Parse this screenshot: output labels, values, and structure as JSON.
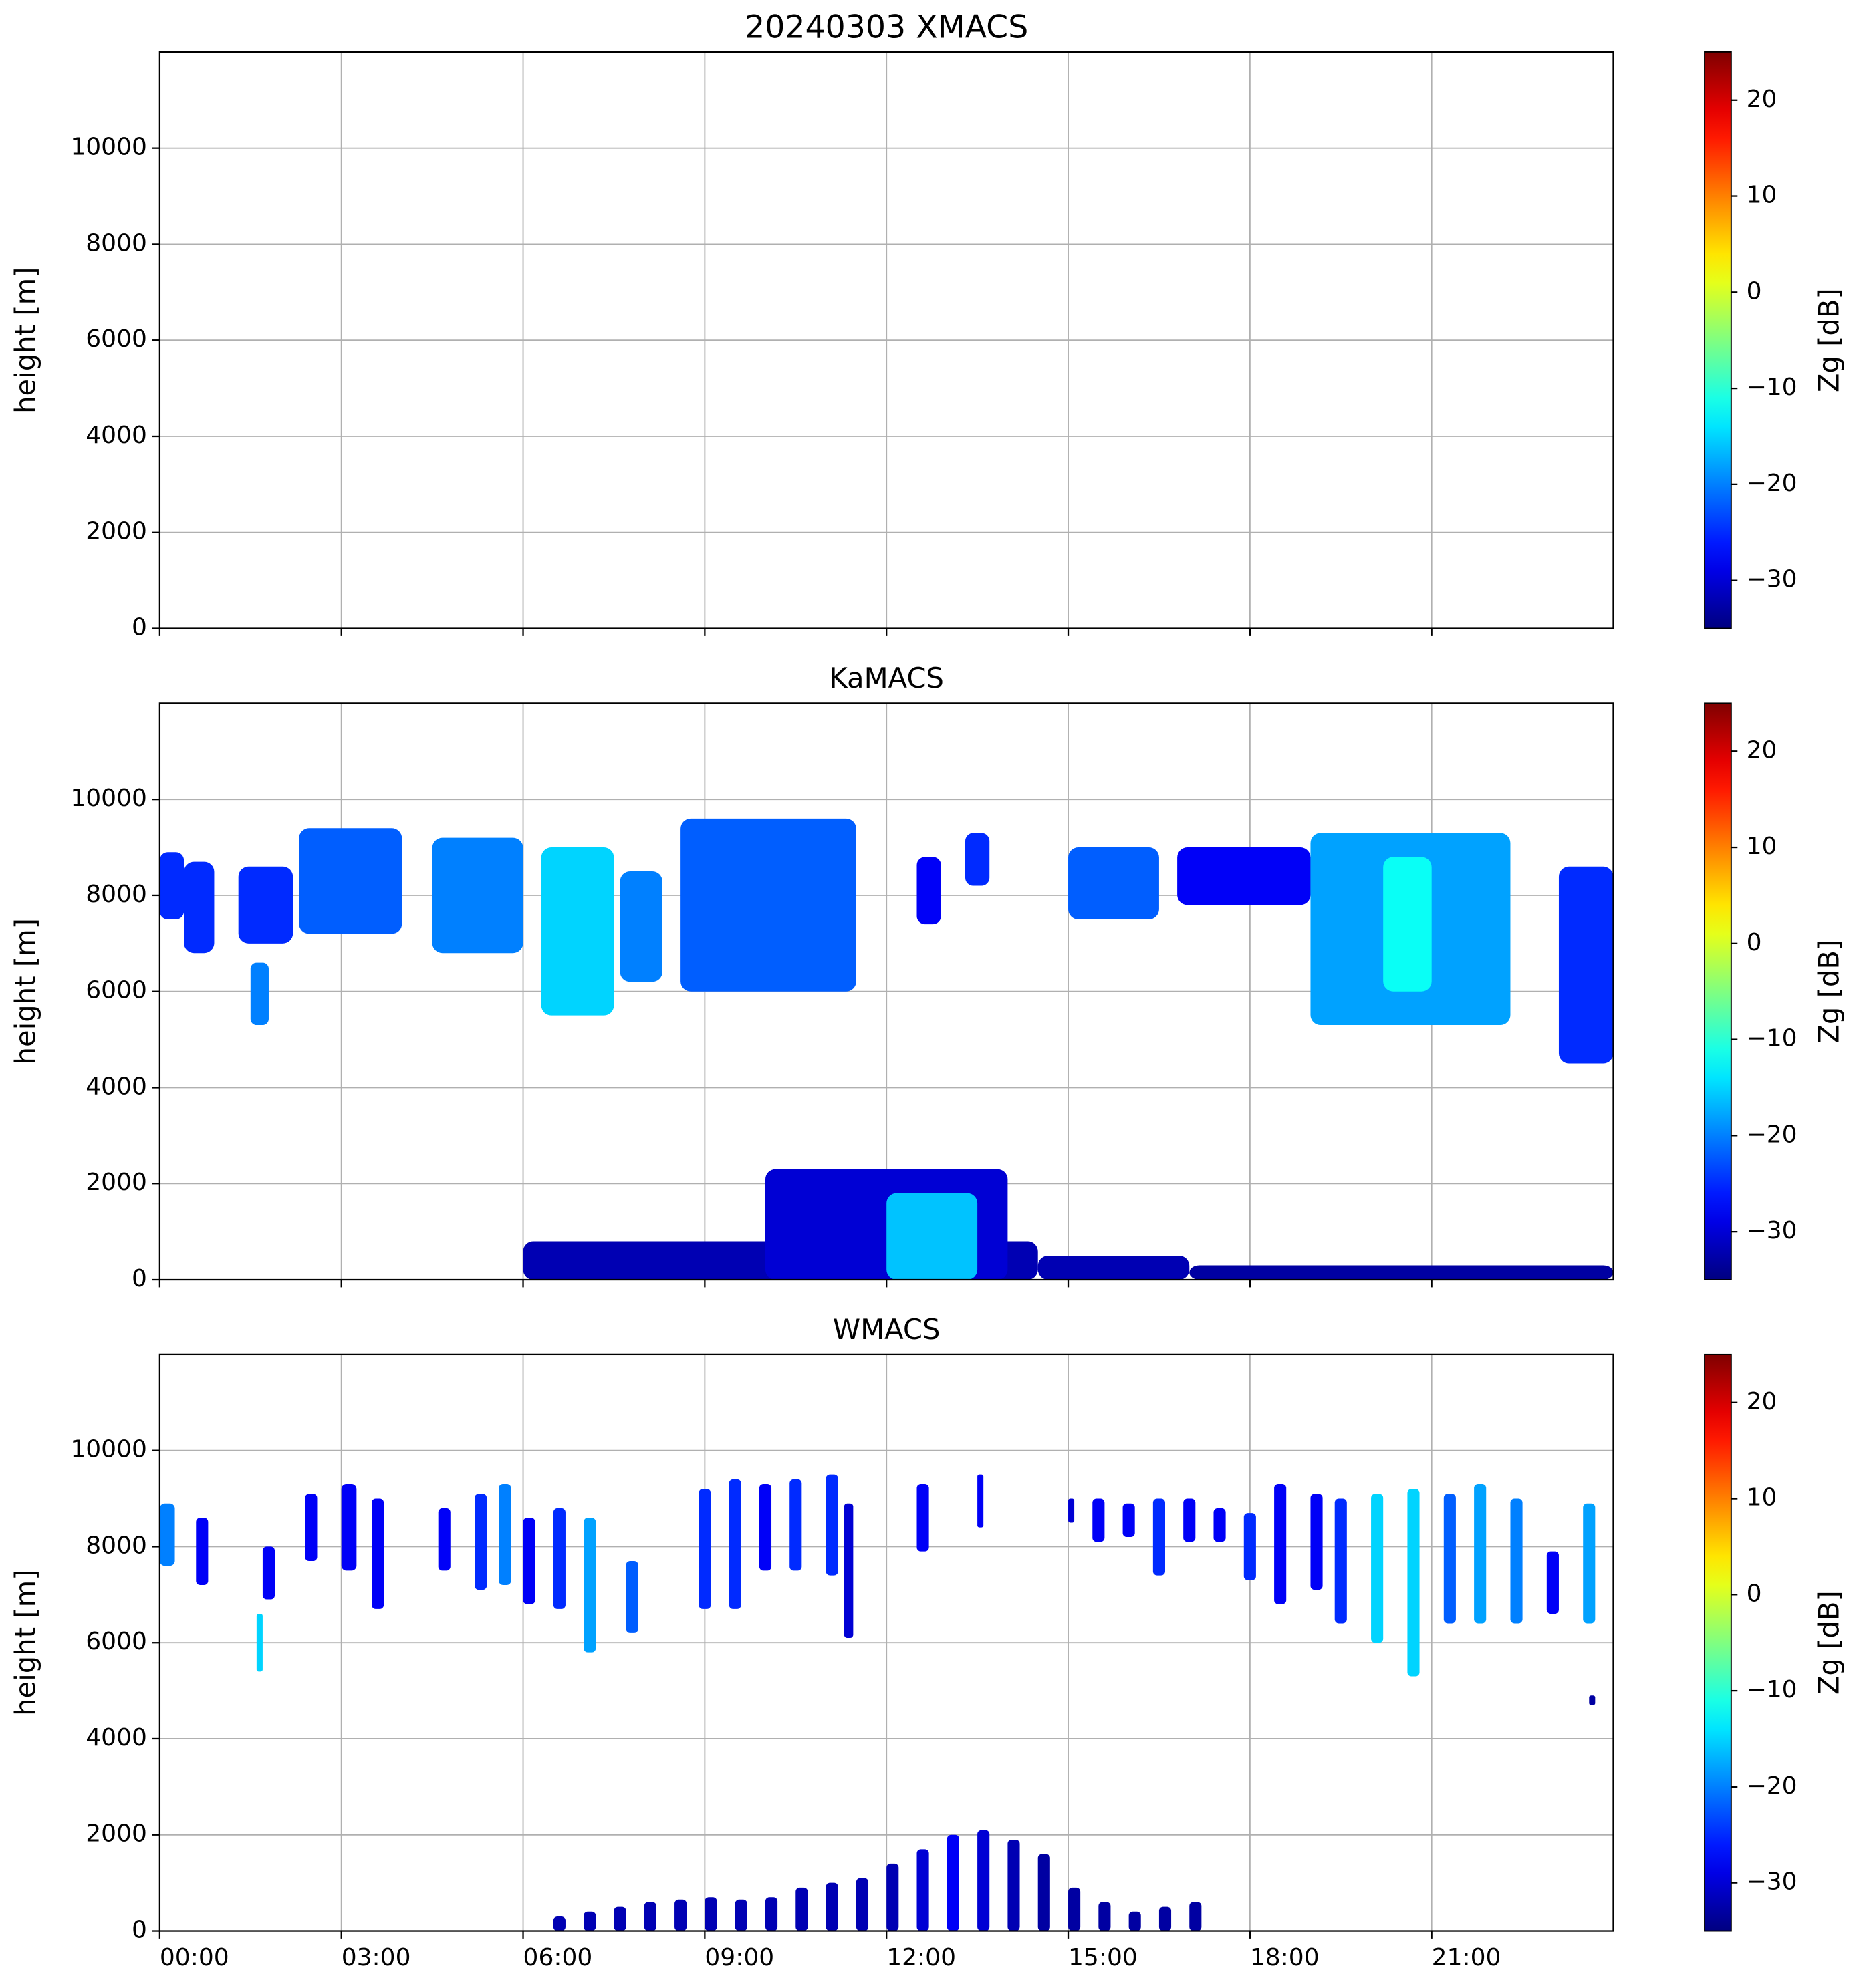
{
  "chart_data": [
    {
      "type": "heatmap",
      "title": "20240303 XMACS",
      "ylabel": "height [m]",
      "xlim": [
        0,
        24
      ],
      "xticks": [
        0,
        3,
        6,
        9,
        12,
        15,
        18,
        21
      ],
      "ylim": [
        0,
        12000
      ],
      "yticks": [
        0,
        2000,
        4000,
        6000,
        8000,
        10000
      ],
      "grid": true,
      "colormap": "jet",
      "clim": [
        -35,
        25
      ],
      "cticks": [
        {
          "value": -30,
          "label": "−30"
        },
        {
          "value": -20,
          "label": "−20"
        },
        {
          "value": -10,
          "label": "−10"
        },
        0,
        10,
        20
      ],
      "clabel": "Zg [dB]",
      "cells": []
    },
    {
      "type": "heatmap",
      "title": "KaMACS",
      "ylabel": "height [m]",
      "xlim": [
        0,
        24
      ],
      "xticks": [
        0,
        3,
        6,
        9,
        12,
        15,
        18,
        21
      ],
      "ylim": [
        0,
        12000
      ],
      "yticks": [
        0,
        2000,
        4000,
        6000,
        8000,
        10000
      ],
      "grid": true,
      "colormap": "jet",
      "clim": [
        -35,
        25
      ],
      "cticks": [
        {
          "value": -30,
          "label": "−30"
        },
        {
          "value": -20,
          "label": "−20"
        },
        {
          "value": -10,
          "label": "−10"
        },
        0,
        10,
        20
      ],
      "clabel": "Zg [dB]",
      "cells": [
        {
          "t": [
            0.0,
            0.4
          ],
          "h": [
            7500,
            8900
          ],
          "z": -25
        },
        {
          "t": [
            0.4,
            0.9
          ],
          "h": [
            6800,
            8700
          ],
          "z": -25
        },
        {
          "t": [
            1.3,
            2.2
          ],
          "h": [
            7000,
            8600
          ],
          "z": -25
        },
        {
          "t": [
            1.5,
            1.8
          ],
          "h": [
            5300,
            6600
          ],
          "z": -20
        },
        {
          "t": [
            2.3,
            4.0
          ],
          "h": [
            7200,
            9400
          ],
          "z": -22
        },
        {
          "t": [
            4.5,
            6.0
          ],
          "h": [
            6800,
            9200
          ],
          "z": -20
        },
        {
          "t": [
            6.3,
            7.5
          ],
          "h": [
            5500,
            9000
          ],
          "z": -15
        },
        {
          "t": [
            7.6,
            8.3
          ],
          "h": [
            6200,
            8500
          ],
          "z": -20
        },
        {
          "t": [
            8.6,
            11.5
          ],
          "h": [
            6000,
            9600
          ],
          "z": -22
        },
        {
          "t": [
            12.5,
            12.9
          ],
          "h": [
            7400,
            8800
          ],
          "z": -28
        },
        {
          "t": [
            13.3,
            13.7
          ],
          "h": [
            8200,
            9300
          ],
          "z": -25
        },
        {
          "t": [
            15.0,
            16.5
          ],
          "h": [
            7500,
            9000
          ],
          "z": -22
        },
        {
          "t": [
            16.8,
            19.0
          ],
          "h": [
            7800,
            9000
          ],
          "z": -28
        },
        {
          "t": [
            19.0,
            22.3
          ],
          "h": [
            5300,
            9300
          ],
          "z": -18
        },
        {
          "t": [
            20.2,
            21.0
          ],
          "h": [
            6000,
            8800
          ],
          "z": -12
        },
        {
          "t": [
            23.1,
            24.0
          ],
          "h": [
            4500,
            8600
          ],
          "z": -25
        },
        {
          "t": [
            6.0,
            14.5
          ],
          "h": [
            0,
            800
          ],
          "z": -32
        },
        {
          "t": [
            10.0,
            14.0
          ],
          "h": [
            0,
            2300
          ],
          "z": -30
        },
        {
          "t": [
            12.0,
            13.5
          ],
          "h": [
            0,
            1800
          ],
          "z": -16
        },
        {
          "t": [
            14.5,
            17.0
          ],
          "h": [
            0,
            500
          ],
          "z": -32
        },
        {
          "t": [
            17.0,
            24.0
          ],
          "h": [
            0,
            300
          ],
          "z": -33
        }
      ]
    },
    {
      "type": "heatmap",
      "title": "WMACS",
      "ylabel": "height [m]",
      "xlim": [
        0,
        24
      ],
      "xticks": [
        {
          "value": 0,
          "label": "00:00"
        },
        {
          "value": 3,
          "label": "03:00"
        },
        {
          "value": 6,
          "label": "06:00"
        },
        {
          "value": 9,
          "label": "09:00"
        },
        {
          "value": 12,
          "label": "12:00"
        },
        {
          "value": 15,
          "label": "15:00"
        },
        {
          "value": 18,
          "label": "18:00"
        },
        {
          "value": 21,
          "label": "21:00"
        }
      ],
      "ylim": [
        0,
        12000
      ],
      "yticks": [
        0,
        2000,
        4000,
        6000,
        8000,
        10000
      ],
      "grid": true,
      "colormap": "jet",
      "clim": [
        -35,
        25
      ],
      "cticks": [
        {
          "value": -30,
          "label": "−30"
        },
        {
          "value": -20,
          "label": "−20"
        },
        {
          "value": -10,
          "label": "−10"
        },
        0,
        10,
        20
      ],
      "clabel": "Zg [dB]",
      "cells": [
        {
          "t": [
            0.0,
            0.25
          ],
          "h": [
            7600,
            8900
          ],
          "z": -20
        },
        {
          "t": [
            0.6,
            0.8
          ],
          "h": [
            7200,
            8600
          ],
          "z": -28
        },
        {
          "t": [
            1.7,
            1.9
          ],
          "h": [
            6900,
            8000
          ],
          "z": -28
        },
        {
          "t": [
            1.6,
            1.7
          ],
          "h": [
            5400,
            6600
          ],
          "z": -15
        },
        {
          "t": [
            2.4,
            2.6
          ],
          "h": [
            7700,
            9100
          ],
          "z": -28
        },
        {
          "t": [
            3.0,
            3.25
          ],
          "h": [
            7500,
            9300
          ],
          "z": -28
        },
        {
          "t": [
            3.5,
            3.7
          ],
          "h": [
            6700,
            9000
          ],
          "z": -28
        },
        {
          "t": [
            4.6,
            4.8
          ],
          "h": [
            7500,
            8800
          ],
          "z": -28
        },
        {
          "t": [
            5.2,
            5.4
          ],
          "h": [
            7100,
            9100
          ],
          "z": -25
        },
        {
          "t": [
            5.6,
            5.8
          ],
          "h": [
            7200,
            9300
          ],
          "z": -20
        },
        {
          "t": [
            6.0,
            6.2
          ],
          "h": [
            6800,
            8600
          ],
          "z": -28
        },
        {
          "t": [
            6.5,
            6.7
          ],
          "h": [
            6700,
            8800
          ],
          "z": -25
        },
        {
          "t": [
            7.0,
            7.2
          ],
          "h": [
            5800,
            8600
          ],
          "z": -18
        },
        {
          "t": [
            7.7,
            7.9
          ],
          "h": [
            6200,
            7700
          ],
          "z": -22
        },
        {
          "t": [
            8.9,
            9.1
          ],
          "h": [
            6700,
            9200
          ],
          "z": -25
        },
        {
          "t": [
            9.4,
            9.6
          ],
          "h": [
            6700,
            9400
          ],
          "z": -25
        },
        {
          "t": [
            9.9,
            10.1
          ],
          "h": [
            7500,
            9300
          ],
          "z": -28
        },
        {
          "t": [
            10.4,
            10.6
          ],
          "h": [
            7500,
            9400
          ],
          "z": -25
        },
        {
          "t": [
            11.0,
            11.2
          ],
          "h": [
            7400,
            9500
          ],
          "z": -25
        },
        {
          "t": [
            11.3,
            11.45
          ],
          "h": [
            6100,
            8900
          ],
          "z": -30
        },
        {
          "t": [
            12.5,
            12.7
          ],
          "h": [
            7900,
            9300
          ],
          "z": -28
        },
        {
          "t": [
            13.5,
            13.6
          ],
          "h": [
            8400,
            9500
          ],
          "z": -28
        },
        {
          "t": [
            15.0,
            15.1
          ],
          "h": [
            8500,
            9000
          ],
          "z": -30
        },
        {
          "t": [
            15.4,
            15.6
          ],
          "h": [
            8100,
            9000
          ],
          "z": -28
        },
        {
          "t": [
            15.9,
            16.1
          ],
          "h": [
            8200,
            8900
          ],
          "z": -28
        },
        {
          "t": [
            16.4,
            16.6
          ],
          "h": [
            7400,
            9000
          ],
          "z": -25
        },
        {
          "t": [
            16.9,
            17.1
          ],
          "h": [
            8100,
            9000
          ],
          "z": -28
        },
        {
          "t": [
            17.4,
            17.6
          ],
          "h": [
            8100,
            8800
          ],
          "z": -28
        },
        {
          "t": [
            17.9,
            18.1
          ],
          "h": [
            7300,
            8700
          ],
          "z": -25
        },
        {
          "t": [
            18.4,
            18.6
          ],
          "h": [
            6800,
            9300
          ],
          "z": -28
        },
        {
          "t": [
            19.0,
            19.2
          ],
          "h": [
            7100,
            9100
          ],
          "z": -28
        },
        {
          "t": [
            19.4,
            19.6
          ],
          "h": [
            6400,
            9000
          ],
          "z": -25
        },
        {
          "t": [
            20.0,
            20.2
          ],
          "h": [
            6000,
            9100
          ],
          "z": -15
        },
        {
          "t": [
            20.6,
            20.8
          ],
          "h": [
            5300,
            9200
          ],
          "z": -15
        },
        {
          "t": [
            21.2,
            21.4
          ],
          "h": [
            6400,
            9100
          ],
          "z": -22
        },
        {
          "t": [
            21.7,
            21.9
          ],
          "h": [
            6400,
            9300
          ],
          "z": -18
        },
        {
          "t": [
            22.3,
            22.5
          ],
          "h": [
            6400,
            9000
          ],
          "z": -20
        },
        {
          "t": [
            22.9,
            23.1
          ],
          "h": [
            6600,
            7900
          ],
          "z": -28
        },
        {
          "t": [
            23.5,
            23.7
          ],
          "h": [
            6400,
            8900
          ],
          "z": -18
        },
        {
          "t": [
            23.6,
            23.7
          ],
          "h": [
            4700,
            4900
          ],
          "z": -33
        },
        {
          "t": [
            6.5,
            6.7
          ],
          "h": [
            0,
            300
          ],
          "z": -32
        },
        {
          "t": [
            7.0,
            7.2
          ],
          "h": [
            0,
            400
          ],
          "z": -32
        },
        {
          "t": [
            7.5,
            7.7
          ],
          "h": [
            0,
            500
          ],
          "z": -32
        },
        {
          "t": [
            8.0,
            8.2
          ],
          "h": [
            0,
            600
          ],
          "z": -32
        },
        {
          "t": [
            8.5,
            8.7
          ],
          "h": [
            0,
            650
          ],
          "z": -32
        },
        {
          "t": [
            9.0,
            9.2
          ],
          "h": [
            0,
            700
          ],
          "z": -32
        },
        {
          "t": [
            9.5,
            9.7
          ],
          "h": [
            0,
            650
          ],
          "z": -32
        },
        {
          "t": [
            10.0,
            10.2
          ],
          "h": [
            0,
            700
          ],
          "z": -32
        },
        {
          "t": [
            10.5,
            10.7
          ],
          "h": [
            0,
            900
          ],
          "z": -32
        },
        {
          "t": [
            11.0,
            11.2
          ],
          "h": [
            0,
            1000
          ],
          "z": -32
        },
        {
          "t": [
            11.5,
            11.7
          ],
          "h": [
            0,
            1100
          ],
          "z": -32
        },
        {
          "t": [
            12.0,
            12.2
          ],
          "h": [
            0,
            1400
          ],
          "z": -32
        },
        {
          "t": [
            12.5,
            12.7
          ],
          "h": [
            0,
            1700
          ],
          "z": -30
        },
        {
          "t": [
            13.0,
            13.2
          ],
          "h": [
            0,
            2000
          ],
          "z": -28
        },
        {
          "t": [
            13.5,
            13.7
          ],
          "h": [
            0,
            2100
          ],
          "z": -30
        },
        {
          "t": [
            14.0,
            14.2
          ],
          "h": [
            0,
            1900
          ],
          "z": -32
        },
        {
          "t": [
            14.5,
            14.7
          ],
          "h": [
            0,
            1600
          ],
          "z": -33
        },
        {
          "t": [
            15.0,
            15.2
          ],
          "h": [
            0,
            900
          ],
          "z": -33
        },
        {
          "t": [
            15.5,
            15.7
          ],
          "h": [
            0,
            600
          ],
          "z": -33
        },
        {
          "t": [
            16.0,
            16.2
          ],
          "h": [
            0,
            400
          ],
          "z": -33
        },
        {
          "t": [
            16.5,
            16.7
          ],
          "h": [
            0,
            500
          ],
          "z": -33
        },
        {
          "t": [
            17.0,
            17.2
          ],
          "h": [
            0,
            600
          ],
          "z": -33
        }
      ]
    }
  ]
}
